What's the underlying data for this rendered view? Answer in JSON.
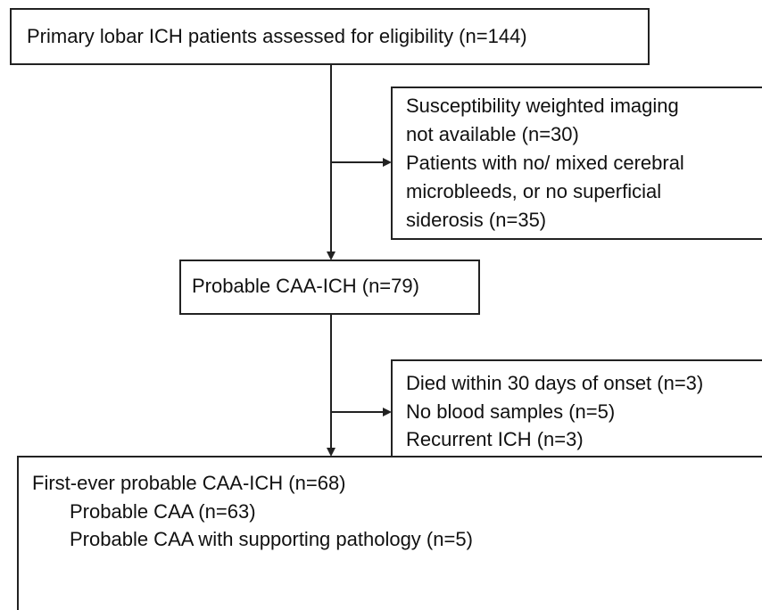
{
  "boxes": [
    {
      "lines": [
        "Primary lobar ICH patients assessed for eligibility (n=144)"
      ]
    },
    {
      "lines": [
        "Susceptibility weighted imaging",
        "not available (n=30)",
        "Patients with no/ mixed cerebral",
        "microbleeds, or no superficial",
        "siderosis (n=35)"
      ]
    },
    {
      "lines": [
        "Probable CAA-ICH (n=79)"
      ]
    },
    {
      "lines": [
        "Died within 30 days of onset (n=3)",
        "No blood samples (n=5)",
        "Recurrent ICH (n=3)"
      ]
    },
    {
      "lines": [
        "First-ever probable CAA-ICH (n=68)",
        "Probable CAA (n=63)",
        "Probable CAA with supporting pathology (n=5)"
      ]
    }
  ]
}
